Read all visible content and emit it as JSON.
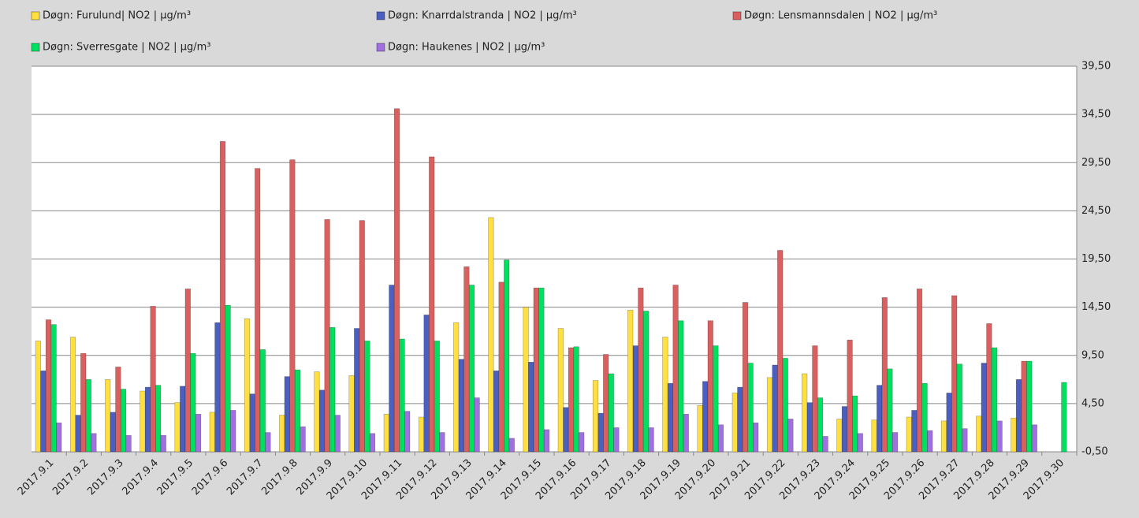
{
  "chart_data": {
    "type": "bar",
    "categories": [
      "2017.9.1",
      "2017.9.2",
      "2017.9.3",
      "2017.9.4",
      "2017.9.5",
      "2017.9.6",
      "2017.9.7",
      "2017.9.8",
      "2017.9.9",
      "2017.9.10",
      "2017.9.11",
      "2017.9.12",
      "2017.9.13",
      "2017.9.14",
      "2017.9.15",
      "2017.9.16",
      "2017.9.17",
      "2017.9.18",
      "2017.9.19",
      "2017.9.20",
      "2017.9.21",
      "2017.9.22",
      "2017.9.23",
      "2017.9.24",
      "2017.9.25",
      "2017.9.26",
      "2017.9.27",
      "2017.9.28",
      "2017.9.29",
      "2017.9.30"
    ],
    "series": [
      {
        "name": "Døgn: Furulund| NO2 | µg/m³",
        "color": "#ffe040",
        "values": [
          11.0,
          11.4,
          7.0,
          5.8,
          4.6,
          3.6,
          13.3,
          3.3,
          7.8,
          7.4,
          3.4,
          3.1,
          12.9,
          23.8,
          14.5,
          12.3,
          6.9,
          14.2,
          11.4,
          4.3,
          5.6,
          7.2,
          7.6,
          2.9,
          2.8,
          3.1,
          2.7,
          3.2,
          3.0,
          null
        ]
      },
      {
        "name": "Døgn: Knarrdalstranda | NO2 | µg/m³",
        "color": "#4a5fbf",
        "values": [
          7.9,
          3.3,
          3.6,
          6.2,
          6.3,
          12.9,
          5.5,
          7.3,
          5.9,
          12.3,
          16.8,
          13.7,
          9.1,
          7.9,
          8.8,
          4.1,
          3.5,
          10.5,
          6.6,
          6.8,
          6.2,
          8.5,
          4.6,
          4.2,
          6.4,
          3.8,
          5.6,
          8.7,
          7.0,
          null
        ]
      },
      {
        "name": "Døgn: Lensmannsdalen | NO2 | µg/m³",
        "color": "#d9605f",
        "values": [
          13.2,
          9.7,
          8.3,
          14.6,
          16.4,
          31.7,
          28.9,
          29.8,
          23.6,
          23.5,
          35.1,
          30.1,
          18.7,
          17.1,
          16.5,
          10.3,
          9.6,
          16.5,
          16.8,
          13.1,
          15.0,
          20.4,
          10.5,
          11.1,
          15.5,
          16.4,
          15.7,
          12.8,
          8.9,
          null
        ]
      },
      {
        "name": "Døgn: Sverresgate  | NO2 | µg/m³",
        "color": "#00e060",
        "values": [
          12.7,
          7.0,
          6.0,
          6.4,
          9.7,
          14.7,
          10.1,
          8.0,
          12.4,
          11.0,
          11.2,
          11.0,
          16.8,
          19.4,
          16.5,
          10.4,
          7.6,
          14.1,
          13.1,
          10.5,
          8.7,
          9.2,
          5.1,
          5.3,
          8.1,
          6.6,
          8.6,
          10.3,
          8.9,
          6.7
        ]
      },
      {
        "name": "Døgn: Haukenes | NO2 | µg/m³",
        "color": "#a070e0",
        "values": [
          2.5,
          1.4,
          1.2,
          1.2,
          3.4,
          3.8,
          1.5,
          2.1,
          3.3,
          1.4,
          3.7,
          1.5,
          5.1,
          0.9,
          1.8,
          1.5,
          2.0,
          2.0,
          3.4,
          2.3,
          2.5,
          2.9,
          1.1,
          1.4,
          1.5,
          1.7,
          1.9,
          2.7,
          2.3,
          null
        ]
      }
    ],
    "ylim": [
      -0.5,
      39.5
    ],
    "yticks": [
      {
        "value": -0.5,
        "label": "-0,50"
      },
      {
        "value": 4.5,
        "label": "4,50"
      },
      {
        "value": 9.5,
        "label": "9,50"
      },
      {
        "value": 14.5,
        "label": "14,50"
      },
      {
        "value": 19.5,
        "label": "19,50"
      },
      {
        "value": 24.5,
        "label": "24,50"
      },
      {
        "value": 29.5,
        "label": "29,50"
      },
      {
        "value": 34.5,
        "label": "34,50"
      },
      {
        "value": 39.5,
        "label": "39,50"
      }
    ],
    "grid": true
  }
}
